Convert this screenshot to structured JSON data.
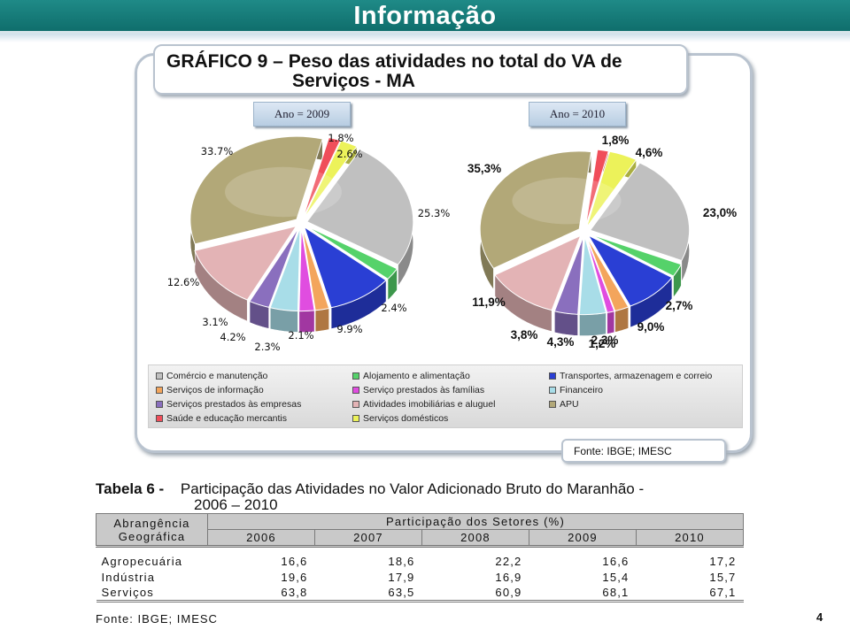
{
  "header": {
    "title": "Informação"
  },
  "chart_title": {
    "line1": "GRÁFICO 9 – Peso das atividades no total do VA de",
    "line2": "Serviços - MA"
  },
  "colors": {
    "header": "#1f8a87",
    "comercio": "#c0c0c0",
    "alojamento": "#55d26a",
    "transportes": "#2a3fd4",
    "informacao": "#f3a55c",
    "familias": "#e04de0",
    "financeiro": "#a8dde8",
    "empresas": "#8a6fbe",
    "imobiliarias": "#e3b3b5",
    "apu": "#b2a878",
    "saude": "#f04e5a",
    "domesticos": "#ecf25a"
  },
  "chart_data": [
    {
      "type": "pie",
      "title": "Ano = 2009",
      "categories": [
        "Comércio e manutenção",
        "Alojamento e alimentação",
        "Transportes, armazenagem e correio",
        "Serviços de informação",
        "Serviço prestados às famílias",
        "Financeiro",
        "Serviços prestados às empresas",
        "Atividades imobiliárias e aluguel",
        "APU",
        "Saúde e educação mercantis",
        "Serviços domésticos"
      ],
      "values": [
        25.3,
        2.4,
        9.9,
        2.1,
        2.3,
        4.2,
        3.1,
        12.6,
        33.7,
        1.8,
        2.6
      ],
      "labels": [
        "25.3%",
        "2.4%",
        "9.9%",
        "2.1%",
        "2.3%",
        "4.2%",
        "3.1%",
        "12.6%",
        "33.7%",
        "1.8%",
        "2.6%"
      ]
    },
    {
      "type": "pie",
      "title": "Ano = 2010",
      "categories": [
        "Comércio e manutenção",
        "Alojamento e alimentação",
        "Transportes, armazenagem e correio",
        "Serviços de informação",
        "Serviço prestados às famílias",
        "Financeiro",
        "Serviços prestados às empresas",
        "Atividades imobiliárias e aluguel",
        "APU",
        "Saúde e educação mercantis",
        "Serviços domésticos"
      ],
      "values": [
        23.0,
        2.7,
        9.0,
        2.3,
        1.2,
        4.3,
        3.8,
        11.9,
        35.3,
        1.8,
        4.6
      ],
      "labels": [
        "23,0%",
        "2,7%",
        "9,0%",
        "2,3%",
        "1,2%",
        "4,3%",
        "3,8%",
        "11,9%",
        "35,3%",
        "1,8%",
        "4,6%"
      ]
    },
    {
      "type": "table",
      "title": "Participação das Atividades no Valor Adicionado Bruto do Maranhão - 2006 – 2010",
      "columns": [
        "2006",
        "2007",
        "2008",
        "2009",
        "2010"
      ],
      "rows": [
        {
          "name": "Agropecuária",
          "values": [
            "16,6",
            "18,6",
            "22,2",
            "16,6",
            "17,2"
          ]
        },
        {
          "name": "Indústria",
          "values": [
            "19,6",
            "17,9",
            "16,9",
            "15,4",
            "15,7"
          ]
        },
        {
          "name": "Serviços",
          "values": [
            "63,8",
            "63,5",
            "60,9",
            "68,1",
            "67,1"
          ]
        }
      ]
    }
  ],
  "legend": [
    {
      "label": "Comércio e manutenção",
      "color": "#c0c0c0"
    },
    {
      "label": "Alojamento e alimentação",
      "color": "#55d26a"
    },
    {
      "label": "Transportes, armazenagem e correio",
      "color": "#2a3fd4"
    },
    {
      "label": "Serviços de informação",
      "color": "#f3a55c"
    },
    {
      "label": "Serviço prestados às famílias",
      "color": "#e04de0"
    },
    {
      "label": "Financeiro",
      "color": "#a8dde8"
    },
    {
      "label": "Serviços prestados às empresas",
      "color": "#8a6fbe"
    },
    {
      "label": "Atividades imobiliárias e aluguel",
      "color": "#e3b3b5"
    },
    {
      "label": "APU",
      "color": "#b2a878"
    },
    {
      "label": "Saúde e educação mercantis",
      "color": "#f04e5a"
    },
    {
      "label": "Serviços domésticos",
      "color": "#ecf25a"
    }
  ],
  "chart_source": "Fonte: IBGE; IMESC",
  "table": {
    "label": "Tabela 6 -",
    "title_line1": "Participação das Atividades no Valor Adicionado Bruto do Maranhão -",
    "title_line2": "2006 – 2010",
    "scope_header_1": "Abrangência",
    "scope_header_2": "Geográfica",
    "group_header": "Participação dos Setores (%)",
    "source": "Fonte: IBGE; IMESC"
  },
  "page_number": "4"
}
